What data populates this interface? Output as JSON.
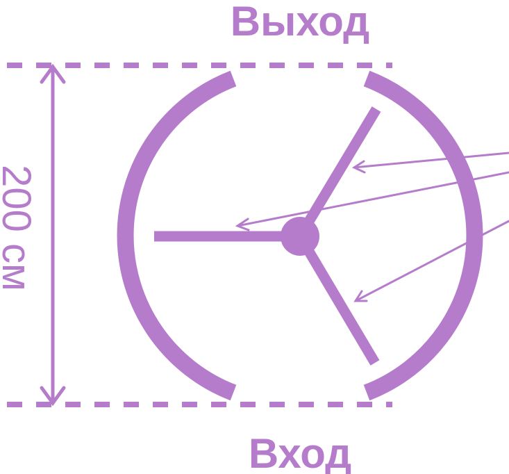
{
  "labels": {
    "exit": "Выход",
    "entry": "Вход",
    "dimension": "200 см"
  },
  "colors": {
    "primary": "#b57ccb",
    "background": "#ffffff"
  }
}
